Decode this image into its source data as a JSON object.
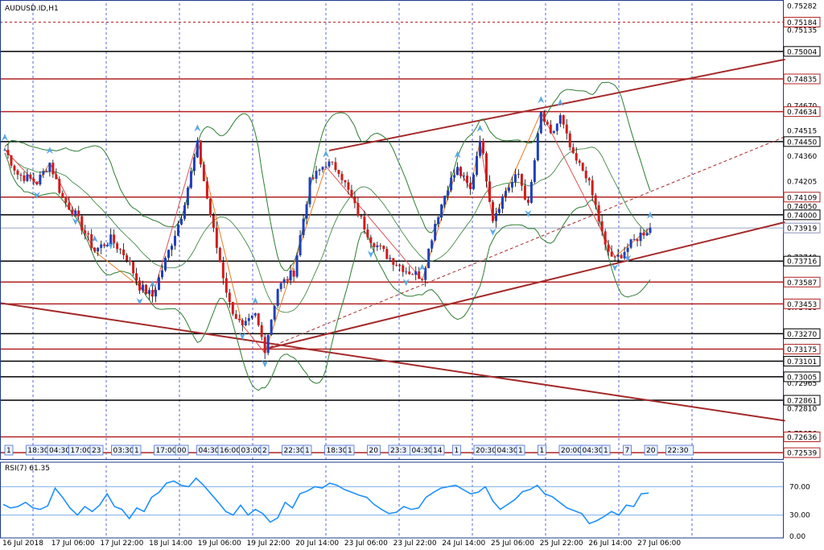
{
  "chart_data": {
    "type": "candlestick",
    "title": "AUDUSD.ID,H1",
    "symbol_timeframe": "AUDUSD.ID,H1",
    "price_range": [
      0.725,
      0.753
    ],
    "price_ticks": [
      "0.75282",
      "0.75135",
      "0.74670",
      "0.74515",
      "0.74360",
      "0.74205",
      "0.74050",
      "0.73740",
      "0.73430",
      "0.73270",
      "0.72965",
      "0.72810",
      "0.72656"
    ],
    "level_labels": [
      {
        "price": 0.75184,
        "label": "0.75184",
        "color": "#b22222",
        "style": "dashed"
      },
      {
        "price": 0.75004,
        "label": "0.75004",
        "color": "#000000",
        "style": "solid"
      },
      {
        "price": 0.74835,
        "label": "0.74835",
        "color": "#b22222",
        "style": "solid"
      },
      {
        "price": 0.74634,
        "label": "0.74634",
        "color": "#b22222",
        "style": "solid"
      },
      {
        "price": 0.7445,
        "label": "0.74450",
        "color": "#000000",
        "style": "solid"
      },
      {
        "price": 0.74109,
        "label": "0.74109",
        "color": "#b22222",
        "style": "solid"
      },
      {
        "price": 0.74,
        "label": "0.74000",
        "color": "#000000",
        "style": "solid"
      },
      {
        "price": 0.73919,
        "label": "0.73919",
        "color": "#888888",
        "style": "current"
      },
      {
        "price": 0.73716,
        "label": "0.73716",
        "color": "#000000",
        "style": "solid"
      },
      {
        "price": 0.73587,
        "label": "0.73587",
        "color": "#b22222",
        "style": "solid"
      },
      {
        "price": 0.73453,
        "label": "0.73453",
        "color": "#b22222",
        "style": "solid"
      },
      {
        "price": 0.7327,
        "label": "0.73270",
        "color": "#000000",
        "style": "solid"
      },
      {
        "price": 0.73175,
        "label": "0.73175",
        "color": "#b22222",
        "style": "solid"
      },
      {
        "price": 0.73101,
        "label": "0.73101",
        "color": "#000000",
        "style": "solid"
      },
      {
        "price": 0.73005,
        "label": "0.73005",
        "color": "#000000",
        "style": "solid"
      },
      {
        "price": 0.72861,
        "label": "0.72861",
        "color": "#000000",
        "style": "solid"
      },
      {
        "price": 0.72636,
        "label": "0.72636",
        "color": "#b22222",
        "style": "solid"
      },
      {
        "price": 0.72539,
        "label": "0.72539",
        "color": "#b22222",
        "style": "solid"
      }
    ],
    "x_labels": [
      "16 Jul 2018",
      "17 Jul 06:00",
      "17 Jul 22:00",
      "18 Jul 14:00",
      "19 Jul 06:00",
      "19 Jul 22:00",
      "20 Jul 14:00",
      "23 Jul 06:00",
      "23 Jul 22:00",
      "24 Jul 14:00",
      "25 Jul 06:00",
      "25 Jul 22:00",
      "26 Jul 14:00",
      "27 Jul 06:00"
    ],
    "session_labels": [
      "1",
      "18:30",
      "04:30",
      "17:00",
      "23",
      "03:30",
      "1",
      "17:00",
      "00",
      "04:30",
      "16:00",
      "03:00",
      "2",
      "22:30",
      "1",
      "18:30",
      "1",
      "20",
      "23:3",
      "04:30",
      "14",
      "1",
      "20:30",
      "04:30",
      "1",
      "1",
      "20:00",
      "04:30",
      "1",
      "7",
      "20",
      "22:30"
    ],
    "key_prices": [
      {
        "t": 0,
        "p": 0.744
      },
      {
        "t": 4,
        "p": 0.7425
      },
      {
        "t": 10,
        "p": 0.742
      },
      {
        "t": 14,
        "p": 0.7432
      },
      {
        "t": 18,
        "p": 0.741
      },
      {
        "t": 22,
        "p": 0.74
      },
      {
        "t": 28,
        "p": 0.7378
      },
      {
        "t": 33,
        "p": 0.7385
      },
      {
        "t": 38,
        "p": 0.7374
      },
      {
        "t": 42,
        "p": 0.7356
      },
      {
        "t": 46,
        "p": 0.735
      },
      {
        "t": 50,
        "p": 0.7372
      },
      {
        "t": 55,
        "p": 0.74
      },
      {
        "t": 60,
        "p": 0.7443
      },
      {
        "t": 63,
        "p": 0.741
      },
      {
        "t": 66,
        "p": 0.738
      },
      {
        "t": 70,
        "p": 0.7345
      },
      {
        "t": 74,
        "p": 0.733
      },
      {
        "t": 78,
        "p": 0.7338
      },
      {
        "t": 81,
        "p": 0.7318
      },
      {
        "t": 85,
        "p": 0.7355
      },
      {
        "t": 90,
        "p": 0.7365
      },
      {
        "t": 95,
        "p": 0.742
      },
      {
        "t": 100,
        "p": 0.7432
      },
      {
        "t": 104,
        "p": 0.7428
      },
      {
        "t": 109,
        "p": 0.7405
      },
      {
        "t": 114,
        "p": 0.7385
      },
      {
        "t": 119,
        "p": 0.7375
      },
      {
        "t": 125,
        "p": 0.7366
      },
      {
        "t": 130,
        "p": 0.7362
      },
      {
        "t": 134,
        "p": 0.7395
      },
      {
        "t": 138,
        "p": 0.7418
      },
      {
        "t": 141,
        "p": 0.7428
      },
      {
        "t": 145,
        "p": 0.7415
      },
      {
        "t": 148,
        "p": 0.7448
      },
      {
        "t": 152,
        "p": 0.7398
      },
      {
        "t": 156,
        "p": 0.7415
      },
      {
        "t": 160,
        "p": 0.7425
      },
      {
        "t": 163,
        "p": 0.7405
      },
      {
        "t": 167,
        "p": 0.7462
      },
      {
        "t": 170,
        "p": 0.7448
      },
      {
        "t": 173,
        "p": 0.746
      },
      {
        "t": 177,
        "p": 0.7435
      },
      {
        "t": 181,
        "p": 0.7425
      },
      {
        "t": 184,
        "p": 0.7405
      },
      {
        "t": 187,
        "p": 0.738
      },
      {
        "t": 190,
        "p": 0.7372
      },
      {
        "t": 194,
        "p": 0.738
      },
      {
        "t": 198,
        "p": 0.7388
      },
      {
        "t": 201,
        "p": 0.7392
      }
    ],
    "indicator": {
      "name": "RSI(7) 61.35",
      "levels": [
        70,
        30
      ],
      "ticks": [
        "70.00",
        "30.00",
        "0.00"
      ],
      "range": [
        0,
        100
      ],
      "values": [
        45,
        40,
        42,
        48,
        40,
        38,
        43,
        68,
        55,
        40,
        30,
        42,
        35,
        44,
        60,
        42,
        38,
        25,
        40,
        35,
        55,
        62,
        75,
        78,
        72,
        70,
        82,
        72,
        60,
        48,
        35,
        30,
        44,
        30,
        38,
        32,
        20,
        26,
        48,
        40,
        60,
        64,
        70,
        68,
        75,
        72,
        66,
        62,
        58,
        55,
        45,
        38,
        32,
        34,
        42,
        38,
        40,
        55,
        62,
        68,
        70,
        72,
        66,
        60,
        62,
        70,
        50,
        38,
        45,
        52,
        63,
        66,
        72,
        60,
        56,
        48,
        40,
        36,
        32,
        18,
        22,
        28,
        35,
        30,
        44,
        42,
        60,
        61
      ]
    },
    "grid": true,
    "colors": {
      "up": "#1f3fbf",
      "down": "#d41a1a",
      "bollinger": "#2e7d32",
      "channel": "#a52a2a",
      "zigzag": "#e67e22",
      "wick": "#000000",
      "arrow": "#5aa9e6",
      "rsi": "#1e90ff",
      "axis_box": "#1e3a8a"
    }
  }
}
